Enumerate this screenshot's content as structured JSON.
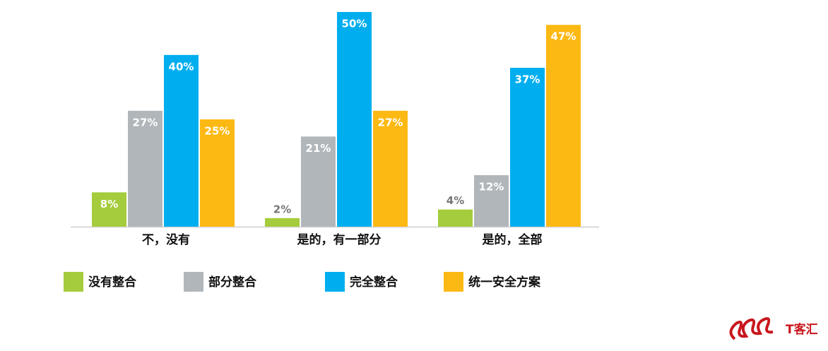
{
  "chart_data": {
    "type": "bar",
    "categories": [
      "不，没有",
      "是的，有一部分",
      "是的，全部"
    ],
    "series": [
      {
        "name": "没有整合",
        "color": "#a4cc3c",
        "values": [
          8,
          2,
          4
        ],
        "value_labels": [
          "8%",
          "2%",
          "4%"
        ]
      },
      {
        "name": "部分整合",
        "color": "#b1b6ba",
        "values": [
          27,
          21,
          12
        ],
        "value_labels": [
          "27%",
          "21%",
          "12%"
        ]
      },
      {
        "name": "完全整合",
        "color": "#00aeef",
        "values": [
          40,
          50,
          37
        ],
        "value_labels": [
          "40%",
          "50%",
          "37%"
        ]
      },
      {
        "name": "统一安全方案",
        "color": "#fdb913",
        "values": [
          25,
          27,
          47
        ],
        "value_labels": [
          "25%",
          "27%",
          "47%"
        ]
      }
    ],
    "watermark": "T客汇"
  }
}
